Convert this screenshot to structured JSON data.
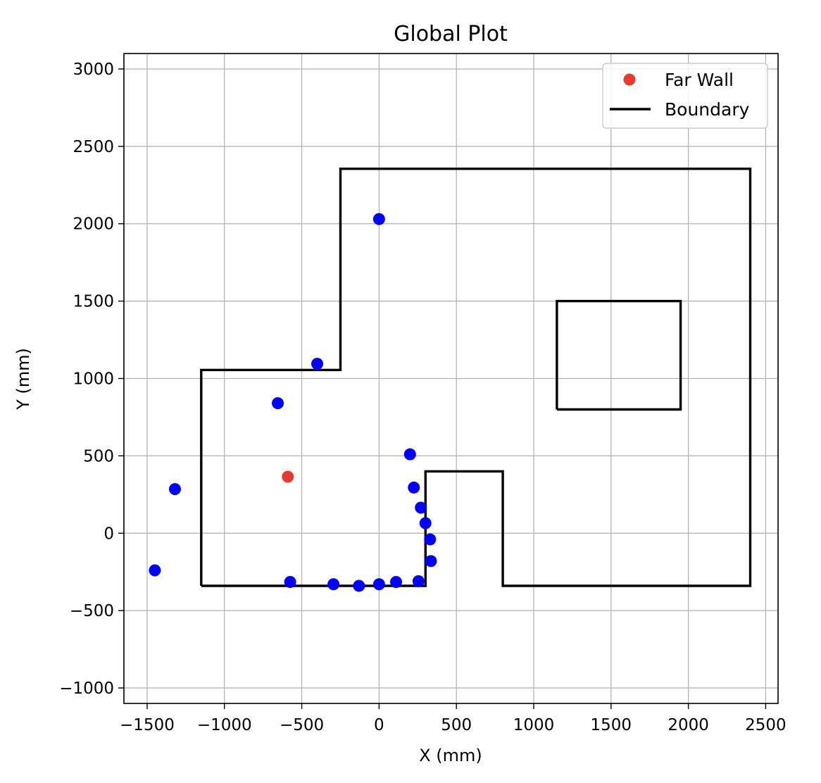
{
  "chart_data": {
    "type": "scatter",
    "title": "Global Plot",
    "xlabel": "X (mm)",
    "ylabel": "Y (mm)",
    "xlim": [
      -1650,
      2580
    ],
    "ylim": [
      -1100,
      3100
    ],
    "grid": true,
    "legend_position": "top-right",
    "x_ticks": [
      -1500,
      -1000,
      -500,
      0,
      500,
      1000,
      1500,
      2000,
      2500
    ],
    "x_tick_labels": [
      "−1500",
      "−1000",
      "−500",
      "0",
      "500",
      "1000",
      "1500",
      "2000",
      "2500"
    ],
    "y_ticks": [
      -1000,
      -500,
      0,
      500,
      1000,
      1500,
      2000,
      2500,
      3000
    ],
    "y_tick_labels": [
      "−1000",
      "−500",
      "0",
      "500",
      "1000",
      "1500",
      "2000",
      "2500",
      "3000"
    ],
    "series": [
      {
        "kind": "scatter",
        "color": "#0000ff",
        "points": [
          [
            -1450,
            -240
          ],
          [
            -1320,
            285
          ],
          [
            -655,
            840
          ],
          [
            -400,
            1095
          ],
          [
            0,
            2030
          ],
          [
            200,
            510
          ],
          [
            225,
            295
          ],
          [
            270,
            165
          ],
          [
            300,
            65
          ],
          [
            330,
            -40
          ],
          [
            335,
            -180
          ],
          [
            255,
            -310
          ],
          [
            110,
            -315
          ],
          [
            0,
            -330
          ],
          [
            -130,
            -340
          ],
          [
            -295,
            -330
          ],
          [
            -575,
            -315
          ]
        ]
      },
      {
        "kind": "scatter",
        "name": "Far Wall",
        "color": "#e8392d",
        "points": [
          [
            -590,
            365
          ]
        ]
      },
      {
        "kind": "line",
        "name": "Boundary",
        "color": "#000000",
        "paths": [
          [
            [
              -1150,
              -340
            ],
            [
              -1150,
              1055
            ],
            [
              -250,
              1055
            ],
            [
              -250,
              2355
            ],
            [
              2400,
              2355
            ],
            [
              2400,
              -340
            ],
            [
              800,
              -340
            ],
            [
              800,
              400
            ],
            [
              300,
              400
            ],
            [
              300,
              -340
            ],
            [
              -1150,
              -340
            ]
          ],
          [
            [
              1150,
              800
            ],
            [
              1150,
              1500
            ],
            [
              1950,
              1500
            ],
            [
              1950,
              800
            ],
            [
              1150,
              800
            ]
          ]
        ]
      }
    ],
    "legend": [
      {
        "label": "Far Wall",
        "kind": "marker",
        "color": "#e8392d"
      },
      {
        "label": "Boundary",
        "kind": "line",
        "color": "#000000"
      }
    ]
  }
}
